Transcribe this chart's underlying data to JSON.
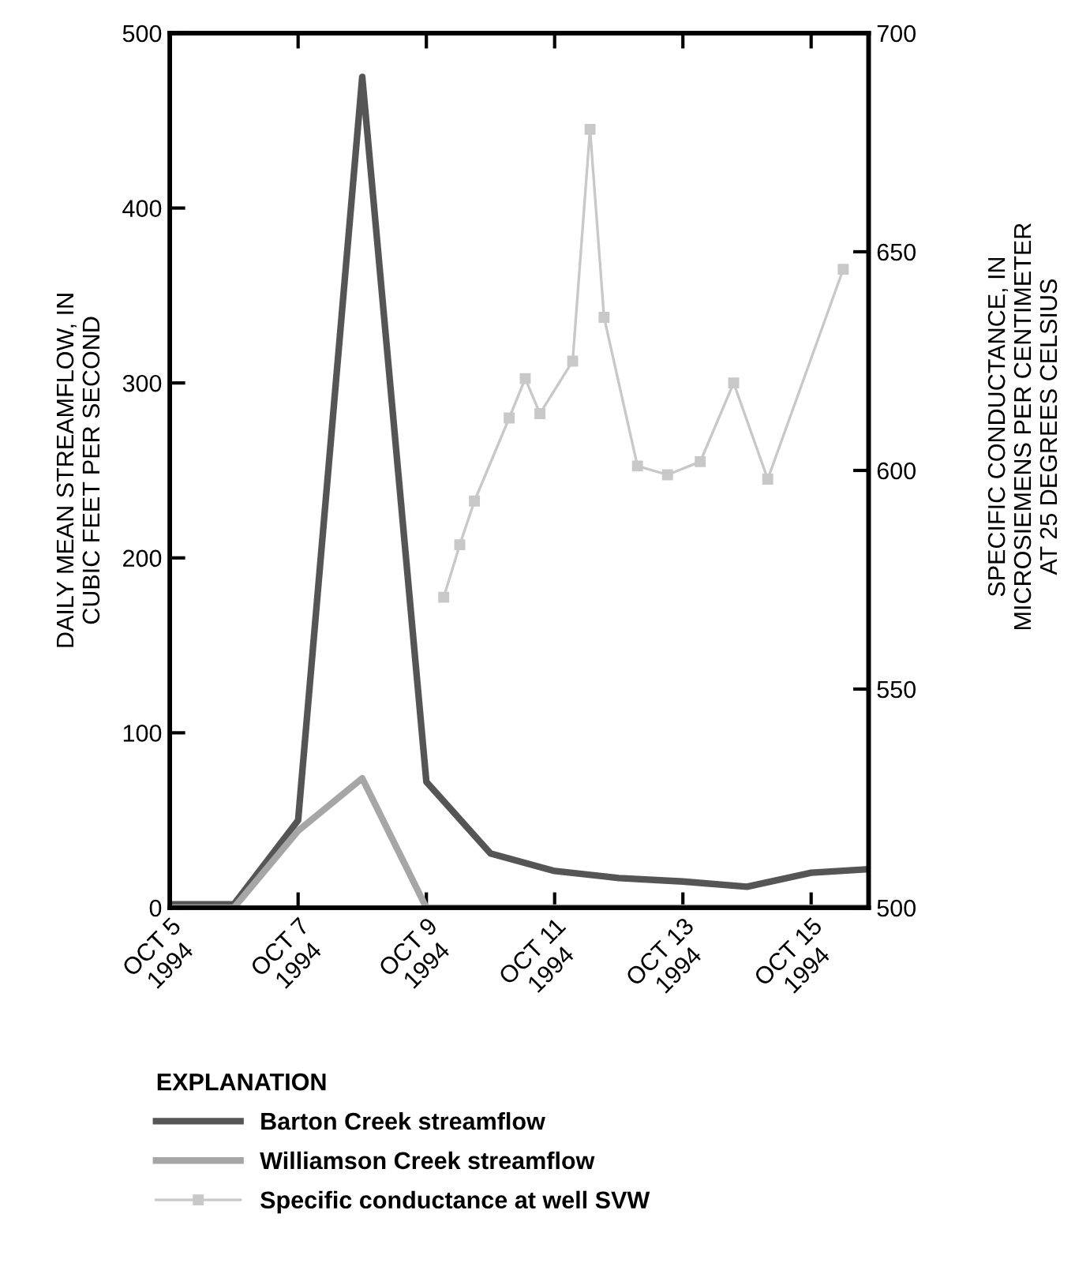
{
  "chart_data": {
    "type": "line",
    "ylabel": "DAILY MEAN STREAMFLOW, IN\nCUBIC FEET PER SECOND",
    "y2label": "SPECIFIC CONDUCTANCE, IN\nMICROSIEMENS PER CENTIMETER\nAT 25 DEGREES CELSIUS",
    "legend_title": "EXPLANATION",
    "legend": "bottom",
    "grid": false,
    "x": [
      "1994-10-05",
      "1994-10-06",
      "1994-10-07",
      "1994-10-08",
      "1994-10-09",
      "1994-10-10",
      "1994-10-11",
      "1994-10-12",
      "1994-10-13",
      "1994-10-14",
      "1994-10-15",
      "1994-10-15T21:30"
    ],
    "series": [
      {
        "name": "Barton Creek streamflow",
        "color": "#555555",
        "marker": "none",
        "values": [
          2,
          2,
          50,
          475,
          72,
          31,
          21,
          17,
          15,
          12,
          20,
          22
        ]
      },
      {
        "name": "Williamson Creek streamflow",
        "color": "#a6a6a6",
        "marker": "none",
        "values": [
          0,
          0,
          44,
          74,
          0,
          0,
          0,
          0,
          0,
          0,
          0,
          0
        ]
      },
      {
        "name": "Specific conductance at well SVW",
        "color": "#c8c8c8",
        "axis": "y2",
        "marker": "square",
        "x": [
          "1994-10-09T06:30",
          "1994-10-09T12:30",
          "1994-10-09T18:00",
          "1994-10-10T07:00",
          "1994-10-10T13:00",
          "1994-10-10T18:30",
          "1994-10-11T06:45",
          "1994-10-11T13:15",
          "1994-10-11T18:30",
          "1994-10-12T07:00",
          "1994-10-12T18:15",
          "1994-10-13T06:30",
          "1994-10-13T19:00",
          "1994-10-14T07:45",
          "1994-10-15T12:00"
        ],
        "values": [
          571,
          583,
          593,
          612,
          621,
          613,
          625,
          678,
          635,
          601,
          599,
          602,
          620,
          598,
          646
        ]
      }
    ],
    "xlim": [
      "1994-10-05",
      "1994-10-15T21:30"
    ],
    "xticks": [
      {
        "value": "1994-10-05",
        "label": "OCT 5\n1994"
      },
      {
        "value": "1994-10-07",
        "label": "OCT 7\n1994"
      },
      {
        "value": "1994-10-09",
        "label": "OCT 9\n1994"
      },
      {
        "value": "1994-10-11",
        "label": "OCT 11\n1994"
      },
      {
        "value": "1994-10-13",
        "label": "OCT 13\n1994"
      },
      {
        "value": "1994-10-15",
        "label": "OCT 15\n1994"
      }
    ],
    "ylim": [
      0,
      500
    ],
    "yticks": [
      0,
      100,
      200,
      300,
      400,
      500
    ],
    "y2lim": [
      500,
      700
    ],
    "y2ticks": [
      500,
      550,
      600,
      650,
      700
    ]
  }
}
